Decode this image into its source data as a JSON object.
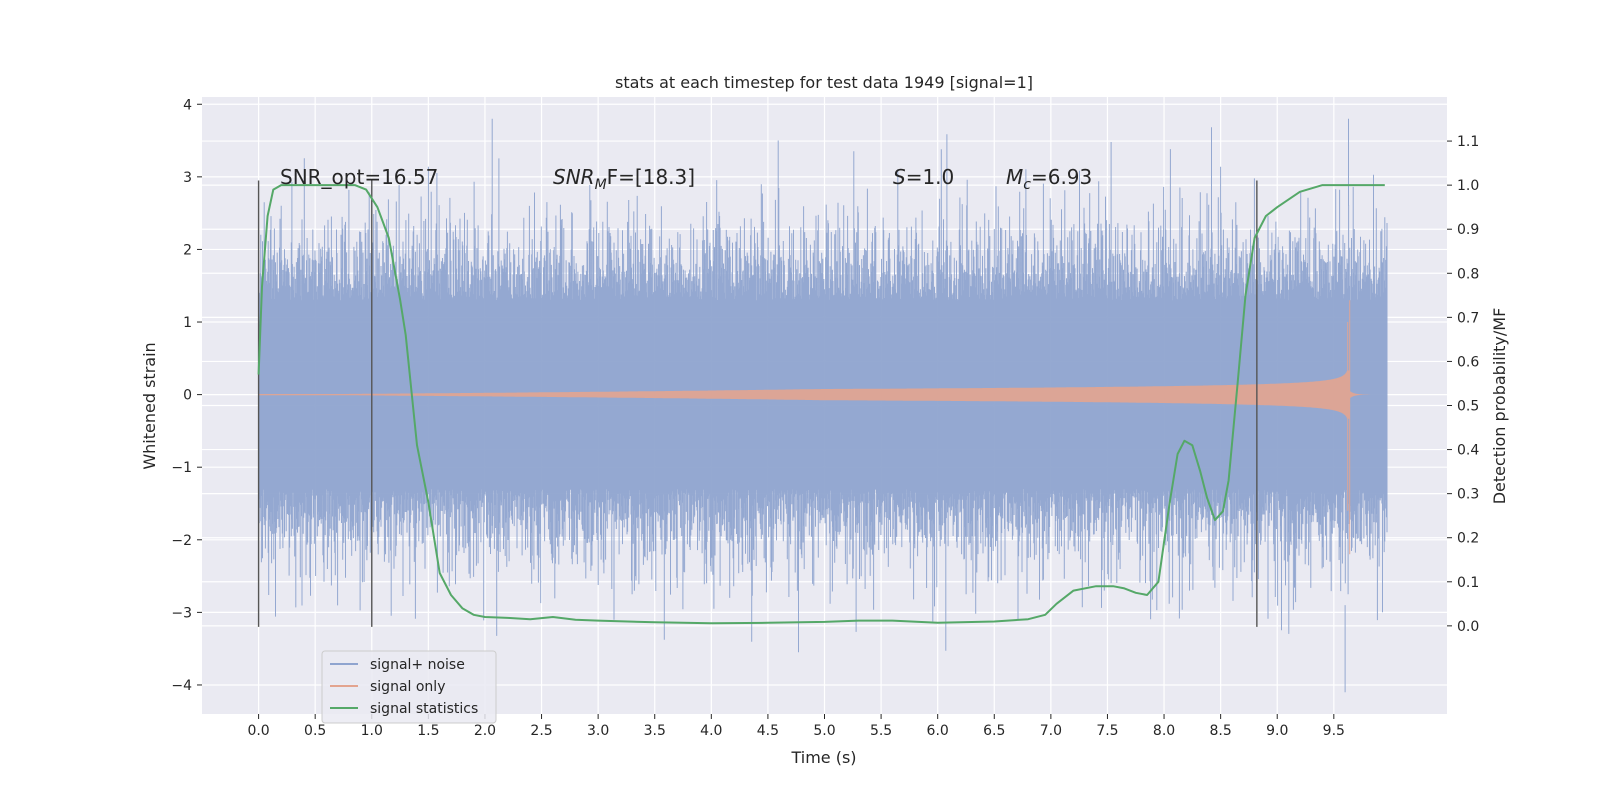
{
  "chart_data": {
    "type": "line",
    "title": "stats at each timestep for test data 1949 [signal=1]",
    "xlabel": "Time (s)",
    "ylabel": "Whitened strain",
    "ylabel_right": "Detection probability/MF",
    "xlim": [
      -0.5,
      10.5
    ],
    "ylim": [
      -4.4,
      4.1
    ],
    "ylim_right": [
      -0.2,
      1.2
    ],
    "x_ticks": [
      0.0,
      0.5,
      1.0,
      1.5,
      2.0,
      2.5,
      3.0,
      3.5,
      4.0,
      4.5,
      5.0,
      5.5,
      6.0,
      6.5,
      7.0,
      7.5,
      8.0,
      8.5,
      9.0,
      9.5
    ],
    "y_ticks": [
      -4,
      -3,
      -2,
      -1,
      0,
      1,
      2,
      3,
      4
    ],
    "y_ticks_right": [
      0.0,
      0.1,
      0.2,
      0.3,
      0.4,
      0.5,
      0.6,
      0.7,
      0.8,
      0.9,
      1.0,
      1.1
    ],
    "grid": true,
    "legend_placement": "lower-left",
    "annotations": [
      {
        "text": "SNR_opt=16.57",
        "x": 0.2,
        "y": 3.0
      },
      {
        "base": "SNR",
        "sub": "M",
        "rest": "F=[18.3]",
        "x": 2.6,
        "y": 3.0
      },
      {
        "base": "S",
        "sub": "",
        "rest": "=1.0",
        "x": 5.6,
        "y": 3.0
      },
      {
        "base": "M",
        "sub": "c",
        "rest": "=6.93",
        "x": 6.6,
        "y": 3.0
      }
    ],
    "vertical_markers": [
      0.0,
      1.0,
      8.82
    ],
    "series": [
      {
        "name": "signal+ noise",
        "color": "#8fa4cf",
        "kind": "noise",
        "time_range": [
          0.0,
          9.97
        ],
        "core_amplitude": 1.3,
        "peak_max": 3.8,
        "peak_min": -4.1
      },
      {
        "name": "signal only",
        "color": "#e3a48f",
        "kind": "chirp",
        "time_range": [
          0.0,
          9.97
        ],
        "merger_time": 9.64,
        "peak_max": 1.3,
        "peak_min": -2.2
      },
      {
        "name": "signal statistics",
        "color": "#55a868",
        "kind": "line",
        "axis": "right",
        "x": [
          0.0,
          0.03,
          0.08,
          0.13,
          0.2,
          0.3,
          0.5,
          0.7,
          0.85,
          0.95,
          1.05,
          1.15,
          1.25,
          1.3,
          1.4,
          1.5,
          1.6,
          1.7,
          1.8,
          1.9,
          2.0,
          2.2,
          2.4,
          2.6,
          2.8,
          3.0,
          3.5,
          4.0,
          4.5,
          5.0,
          5.3,
          5.6,
          6.0,
          6.5,
          6.8,
          6.95,
          7.05,
          7.2,
          7.4,
          7.55,
          7.65,
          7.75,
          7.85,
          7.95,
          8.05,
          8.12,
          8.18,
          8.25,
          8.32,
          8.38,
          8.45,
          8.52,
          8.57,
          8.65,
          8.72,
          8.8,
          8.9,
          9.0,
          9.2,
          9.4,
          9.6,
          9.95
        ],
        "values": [
          0.57,
          0.77,
          0.93,
          0.99,
          1.0,
          1.0,
          1.0,
          1.0,
          1.0,
          0.99,
          0.95,
          0.88,
          0.74,
          0.66,
          0.41,
          0.28,
          0.12,
          0.07,
          0.04,
          0.025,
          0.02,
          0.018,
          0.015,
          0.02,
          0.014,
          0.012,
          0.008,
          0.006,
          0.007,
          0.009,
          0.012,
          0.012,
          0.007,
          0.01,
          0.015,
          0.025,
          0.05,
          0.08,
          0.09,
          0.09,
          0.085,
          0.075,
          0.07,
          0.1,
          0.28,
          0.39,
          0.42,
          0.41,
          0.35,
          0.29,
          0.24,
          0.26,
          0.33,
          0.55,
          0.75,
          0.88,
          0.93,
          0.95,
          0.985,
          1.0,
          1.0,
          1.0
        ]
      }
    ]
  }
}
